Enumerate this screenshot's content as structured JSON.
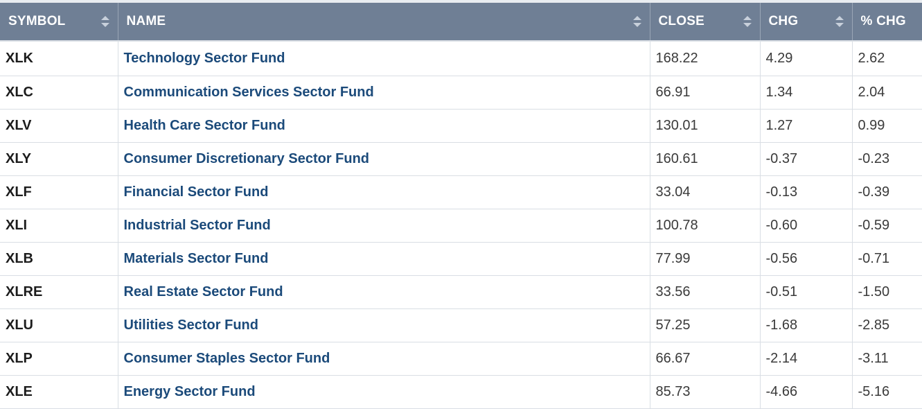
{
  "columns": {
    "symbol": "SYMBOL",
    "name": "NAME",
    "close": "CLOSE",
    "chg": "CHG",
    "pct_chg": "% CHG"
  },
  "rows": [
    {
      "symbol": "XLK",
      "name": "Technology Sector Fund",
      "close": "168.22",
      "chg": "4.29",
      "pct_chg": "2.62"
    },
    {
      "symbol": "XLC",
      "name": "Communication Services Sector Fund",
      "close": "66.91",
      "chg": "1.34",
      "pct_chg": "2.04"
    },
    {
      "symbol": "XLV",
      "name": "Health Care Sector Fund",
      "close": "130.01",
      "chg": "1.27",
      "pct_chg": "0.99"
    },
    {
      "symbol": "XLY",
      "name": "Consumer Discretionary Sector Fund",
      "close": "160.61",
      "chg": "-0.37",
      "pct_chg": "-0.23"
    },
    {
      "symbol": "XLF",
      "name": "Financial Sector Fund",
      "close": "33.04",
      "chg": "-0.13",
      "pct_chg": "-0.39"
    },
    {
      "symbol": "XLI",
      "name": "Industrial Sector Fund",
      "close": "100.78",
      "chg": "-0.60",
      "pct_chg": "-0.59"
    },
    {
      "symbol": "XLB",
      "name": "Materials Sector Fund",
      "close": "77.99",
      "chg": "-0.56",
      "pct_chg": "-0.71"
    },
    {
      "symbol": "XLRE",
      "name": "Real Estate Sector Fund",
      "close": "33.56",
      "chg": "-0.51",
      "pct_chg": "-1.50"
    },
    {
      "symbol": "XLU",
      "name": "Utilities Sector Fund",
      "close": "57.25",
      "chg": "-1.68",
      "pct_chg": "-2.85"
    },
    {
      "symbol": "XLP",
      "name": "Consumer Staples Sector Fund",
      "close": "66.67",
      "chg": "-2.14",
      "pct_chg": "-3.11"
    },
    {
      "symbol": "XLE",
      "name": "Energy Sector Fund",
      "close": "85.73",
      "chg": "-4.66",
      "pct_chg": "-5.16"
    }
  ],
  "colors": {
    "header_bg": "#6f7f95",
    "link": "#1b4a7a",
    "border": "#d9dee4"
  },
  "icons": {
    "sort": "sort-icon"
  }
}
